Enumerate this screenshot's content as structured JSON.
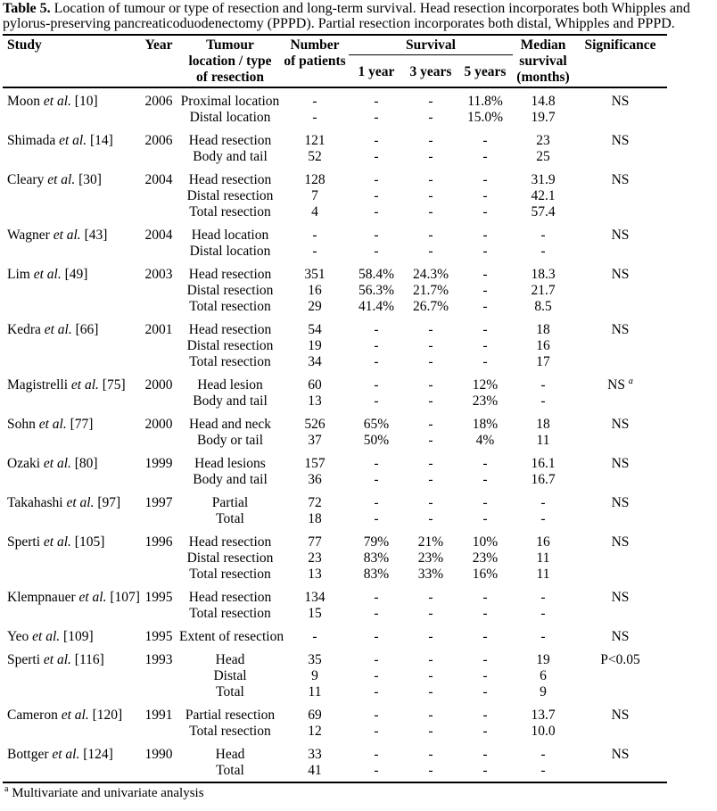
{
  "caption": {
    "label": "Table 5.",
    "text": "Location of tumour or type of resection and long-term survival. Head resection incorporates both Whipples and pylorus-preserving pancreaticoduodenectomy (PPPD). Partial resection incorporates both distal, Whipples and PPPD."
  },
  "header": {
    "study": "Study",
    "year": "Year",
    "location": "Tumour\nlocation / type\nof resection",
    "patients": "Number\nof patients",
    "survival": "Survival",
    "sub_1yr": "1 year",
    "sub_3yr": "3 years",
    "sub_5yr": "5 years",
    "median": "Median\nsurvival\n(months)",
    "significance": "Significance"
  },
  "footnote": {
    "sup": "a",
    "text": "Multivariate and univariate analysis"
  },
  "table": {
    "groups": [
      {
        "study_name": "Moon",
        "study_etal": "et al.",
        "study_ref": "[10]",
        "year": "2006",
        "significance": "NS",
        "rows": [
          {
            "location": "Proximal location",
            "n": "-",
            "y1": "-",
            "y3": "-",
            "y5": "11.8%",
            "median": "14.8"
          },
          {
            "location": "Distal location",
            "n": "-",
            "y1": "-",
            "y3": "-",
            "y5": "15.0%",
            "median": "19.7"
          }
        ]
      },
      {
        "study_name": "Shimada",
        "study_etal": "et al.",
        "study_ref": "[14]",
        "year": "2006",
        "significance": "NS",
        "rows": [
          {
            "location": "Head resection",
            "n": "121",
            "y1": "-",
            "y3": "-",
            "y5": "-",
            "median": "23"
          },
          {
            "location": "Body and tail",
            "n": "52",
            "y1": "-",
            "y3": "-",
            "y5": "-",
            "median": "25"
          }
        ]
      },
      {
        "study_name": "Cleary",
        "study_etal": "et al.",
        "study_ref": "[30]",
        "year": "2004",
        "significance": "NS",
        "rows": [
          {
            "location": "Head resection",
            "n": "128",
            "y1": "-",
            "y3": "-",
            "y5": "-",
            "median": "31.9"
          },
          {
            "location": "Distal resection",
            "n": "7",
            "y1": "-",
            "y3": "-",
            "y5": "-",
            "median": "42.1"
          },
          {
            "location": "Total resection",
            "n": "4",
            "y1": "-",
            "y3": "-",
            "y5": "-",
            "median": "57.4"
          }
        ]
      },
      {
        "study_name": "Wagner",
        "study_etal": "et al.",
        "study_ref": "[43]",
        "year": "2004",
        "significance": "NS",
        "rows": [
          {
            "location": "Head location",
            "n": "-",
            "y1": "-",
            "y3": "-",
            "y5": "-",
            "median": "-"
          },
          {
            "location": "Distal location",
            "n": "-",
            "y1": "-",
            "y3": "-",
            "y5": "-",
            "median": "-"
          }
        ]
      },
      {
        "study_name": "Lim",
        "study_etal": "et al.",
        "study_ref": "[49]",
        "year": "2003",
        "significance": "NS",
        "rows": [
          {
            "location": "Head resection",
            "n": "351",
            "y1": "58.4%",
            "y3": "24.3%",
            "y5": "-",
            "median": "18.3"
          },
          {
            "location": "Distal resection",
            "n": "16",
            "y1": "56.3%",
            "y3": "21.7%",
            "y5": "-",
            "median": "21.7"
          },
          {
            "location": "Total resection",
            "n": "29",
            "y1": "41.4%",
            "y3": "26.7%",
            "y5": "-",
            "median": "8.5"
          }
        ]
      },
      {
        "study_name": "Kedra",
        "study_etal": "et al.",
        "study_ref": "[66]",
        "year": "2001",
        "significance": "NS",
        "rows": [
          {
            "location": "Head resection",
            "n": "54",
            "y1": "-",
            "y3": "-",
            "y5": "-",
            "median": "18"
          },
          {
            "location": "Distal resection",
            "n": "19",
            "y1": "-",
            "y3": "-",
            "y5": "-",
            "median": "16"
          },
          {
            "location": "Total resection",
            "n": "34",
            "y1": "-",
            "y3": "-",
            "y5": "-",
            "median": "17"
          }
        ]
      },
      {
        "study_name": "Magistrelli",
        "study_etal": "et al.",
        "study_ref": "[75]",
        "year": "2000",
        "significance": "NS",
        "sig_sup": "a",
        "rows": [
          {
            "location": "Head lesion",
            "n": "60",
            "y1": "-",
            "y3": "-",
            "y5": "12%",
            "median": "-"
          },
          {
            "location": "Body and tail",
            "n": "13",
            "y1": "-",
            "y3": "-",
            "y5": "23%",
            "median": "-"
          }
        ]
      },
      {
        "study_name": "Sohn",
        "study_etal": "et al.",
        "study_ref": "[77]",
        "year": "2000",
        "significance": "NS",
        "rows": [
          {
            "location": "Head and neck",
            "n": "526",
            "y1": "65%",
            "y3": "-",
            "y5": "18%",
            "median": "18"
          },
          {
            "location": "Body or tail",
            "n": "37",
            "y1": "50%",
            "y3": "-",
            "y5": "4%",
            "median": "11"
          }
        ]
      },
      {
        "study_name": "Ozaki",
        "study_etal": "et al.",
        "study_ref": "[80]",
        "year": "1999",
        "significance": "NS",
        "rows": [
          {
            "location": "Head lesions",
            "n": "157",
            "y1": "-",
            "y3": "-",
            "y5": "-",
            "median": "16.1"
          },
          {
            "location": "Body and tail",
            "n": "36",
            "y1": "-",
            "y3": "-",
            "y5": "-",
            "median": "16.7"
          }
        ]
      },
      {
        "study_name": "Takahashi",
        "study_etal": "et al.",
        "study_ref": "[97]",
        "year": "1997",
        "significance": "NS",
        "rows": [
          {
            "location": "Partial",
            "n": "72",
            "y1": "-",
            "y3": "-",
            "y5": "-",
            "median": "-"
          },
          {
            "location": "Total",
            "n": "18",
            "y1": "-",
            "y3": "-",
            "y5": "-",
            "median": "-"
          }
        ]
      },
      {
        "study_name": "Sperti",
        "study_etal": "et al.",
        "study_ref": "[105]",
        "year": "1996",
        "significance": "NS",
        "rows": [
          {
            "location": "Head resection",
            "n": "77",
            "y1": "79%",
            "y3": "21%",
            "y5": "10%",
            "median": "16"
          },
          {
            "location": "Distal resection",
            "n": "23",
            "y1": "83%",
            "y3": "23%",
            "y5": "23%",
            "median": "11"
          },
          {
            "location": "Total resection",
            "n": "13",
            "y1": "83%",
            "y3": "33%",
            "y5": "16%",
            "median": "11"
          }
        ]
      },
      {
        "study_name": "Klempnauer",
        "study_etal": "et al.",
        "study_ref": "[107]",
        "year": "1995",
        "significance": "NS",
        "rows": [
          {
            "location": "Head resection",
            "n": "134",
            "y1": "-",
            "y3": "-",
            "y5": "-",
            "median": "-"
          },
          {
            "location": "Total resection",
            "n": "15",
            "y1": "-",
            "y3": "-",
            "y5": "-",
            "median": "-"
          }
        ]
      },
      {
        "study_name": "Yeo",
        "study_etal": "et al.",
        "study_ref": "[109]",
        "year": "1995",
        "significance": "NS",
        "rows": [
          {
            "location": "Extent of resection",
            "n": "-",
            "y1": "-",
            "y3": "-",
            "y5": "-",
            "median": "-"
          }
        ]
      },
      {
        "study_name": "Sperti",
        "study_etal": "et al.",
        "study_ref": "[116]",
        "year": "1993",
        "significance": "P<0.05",
        "rows": [
          {
            "location": "Head",
            "n": "35",
            "y1": "-",
            "y3": "-",
            "y5": "-",
            "median": "19"
          },
          {
            "location": "Distal",
            "n": "9",
            "y1": "-",
            "y3": "-",
            "y5": "-",
            "median": "6"
          },
          {
            "location": "Total",
            "n": "11",
            "y1": "-",
            "y3": "-",
            "y5": "-",
            "median": "9"
          }
        ]
      },
      {
        "study_name": "Cameron",
        "study_etal": "et al.",
        "study_ref": "[120]",
        "year": "1991",
        "significance": "NS",
        "rows": [
          {
            "location": "Partial resection",
            "n": "69",
            "y1": "-",
            "y3": "-",
            "y5": "-",
            "median": "13.7"
          },
          {
            "location": "Total resection",
            "n": "12",
            "y1": "-",
            "y3": "-",
            "y5": "-",
            "median": "10.0"
          }
        ]
      },
      {
        "study_name": "Bottger",
        "study_etal": "et al.",
        "study_ref": "[124]",
        "year": "1990",
        "significance": "NS",
        "rows": [
          {
            "location": "Head",
            "n": "33",
            "y1": "-",
            "y3": "-",
            "y5": "-",
            "median": "-"
          },
          {
            "location": "Total",
            "n": "41",
            "y1": "-",
            "y3": "-",
            "y5": "-",
            "median": "-"
          }
        ]
      }
    ]
  }
}
